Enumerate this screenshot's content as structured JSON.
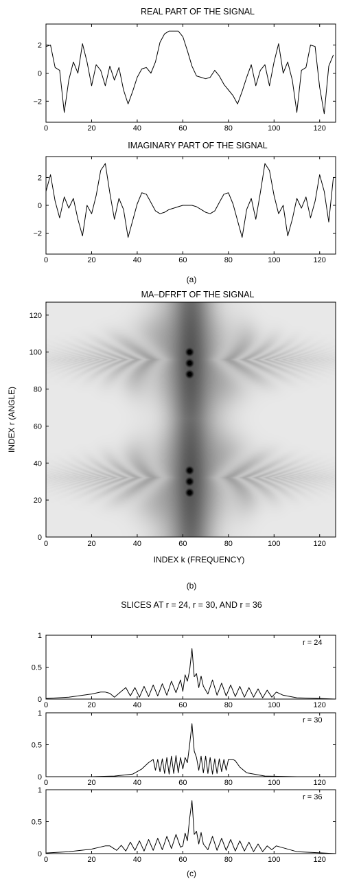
{
  "panels": {
    "a": {
      "label": "(a)"
    },
    "b": {
      "label": "(b)"
    },
    "c": {
      "label": "(c)",
      "title": "SLICES AT r = 24, r = 30, AND r = 36"
    }
  },
  "chart_data": [
    {
      "id": "real",
      "type": "line",
      "title": "REAL PART OF THE SIGNAL",
      "xlabel": "",
      "ylabel": "",
      "xlim": [
        0,
        127
      ],
      "ylim": [
        -3.5,
        3.5
      ],
      "xticks": [
        0,
        20,
        40,
        60,
        80,
        100,
        120
      ],
      "yticks": [
        -2,
        0,
        2
      ],
      "grid": false,
      "x": [
        0,
        2,
        4,
        6,
        8,
        10,
        12,
        14,
        16,
        18,
        20,
        22,
        24,
        26,
        28,
        30,
        32,
        34,
        36,
        38,
        40,
        42,
        44,
        46,
        48,
        50,
        52,
        54,
        56,
        58,
        60,
        62,
        64,
        66,
        68,
        70,
        72,
        74,
        76,
        78,
        80,
        82,
        84,
        86,
        88,
        90,
        92,
        94,
        96,
        98,
        100,
        102,
        104,
        106,
        108,
        110,
        112,
        114,
        116,
        118,
        120,
        122,
        124,
        126
      ],
      "y": [
        1.9,
        2.0,
        0.4,
        0.2,
        -2.8,
        -0.5,
        0.8,
        0.0,
        2.1,
        0.8,
        -0.9,
        0.6,
        0.2,
        -0.9,
        0.5,
        -0.5,
        0.4,
        -1.2,
        -2.2,
        -1.3,
        -0.3,
        0.3,
        0.4,
        0.0,
        0.8,
        2.2,
        2.8,
        3.0,
        3.0,
        3.0,
        2.6,
        1.6,
        0.5,
        -0.2,
        -0.3,
        -0.4,
        -0.3,
        0.2,
        -0.2,
        -0.8,
        -1.2,
        -1.6,
        -2.2,
        -1.3,
        -0.3,
        0.6,
        -0.9,
        0.2,
        0.6,
        -0.9,
        0.8,
        2.1,
        0.0,
        0.8,
        -0.5,
        -2.8,
        0.2,
        0.4,
        2.0,
        1.9,
        -1.0,
        -2.9,
        0.5,
        1.3
      ]
    },
    {
      "id": "imag",
      "type": "line",
      "title": "IMAGINARY PART OF THE SIGNAL",
      "xlabel": "",
      "ylabel": "",
      "xlim": [
        0,
        127
      ],
      "ylim": [
        -3.5,
        3.5
      ],
      "xticks": [
        0,
        20,
        40,
        60,
        80,
        100,
        120
      ],
      "yticks": [
        -2,
        0,
        2
      ],
      "grid": false,
      "x": [
        0,
        2,
        4,
        6,
        8,
        10,
        12,
        14,
        16,
        18,
        20,
        22,
        24,
        26,
        28,
        30,
        32,
        34,
        36,
        38,
        40,
        42,
        44,
        46,
        48,
        50,
        52,
        54,
        56,
        58,
        60,
        62,
        64,
        66,
        68,
        70,
        72,
        74,
        76,
        78,
        80,
        82,
        84,
        86,
        88,
        90,
        92,
        94,
        96,
        98,
        100,
        102,
        104,
        106,
        108,
        110,
        112,
        114,
        116,
        118,
        120,
        122,
        124,
        126
      ],
      "y": [
        1.0,
        2.2,
        0.3,
        -0.9,
        0.6,
        -0.2,
        0.5,
        -1.0,
        -2.2,
        0.0,
        -0.6,
        0.7,
        2.5,
        3.0,
        0.9,
        -1.0,
        0.5,
        -0.3,
        -2.3,
        -1.1,
        0.1,
        0.9,
        0.8,
        0.2,
        -0.4,
        -0.6,
        -0.5,
        -0.3,
        -0.2,
        -0.1,
        0.0,
        0.0,
        0.0,
        -0.1,
        -0.3,
        -0.5,
        -0.6,
        -0.4,
        0.2,
        0.8,
        0.9,
        0.1,
        -1.1,
        -2.3,
        -0.3,
        0.5,
        -1.0,
        0.9,
        3.0,
        2.5,
        0.7,
        -0.6,
        0.0,
        -2.2,
        -1.0,
        0.5,
        -0.2,
        0.6,
        -0.9,
        0.3,
        2.2,
        1.0,
        -1.2,
        2.0
      ]
    },
    {
      "id": "madfrft",
      "type": "heatmap",
      "title": "MA–DFRFT OF THE SIGNAL",
      "xlabel": "INDEX k (FREQUENCY)",
      "ylabel": "INDEX r (ANGLE)",
      "xlim": [
        0,
        127
      ],
      "ylim": [
        0,
        127
      ],
      "xticks": [
        0,
        20,
        40,
        60,
        80,
        100,
        120
      ],
      "yticks": [
        0,
        20,
        40,
        60,
        80,
        100,
        120
      ],
      "colormap": "gray-inverted",
      "peaks": [
        {
          "k": 63,
          "r": 24
        },
        {
          "k": 63,
          "r": 30
        },
        {
          "k": 63,
          "r": 36
        },
        {
          "k": 63,
          "r": 88
        },
        {
          "k": 63,
          "r": 94
        },
        {
          "k": 63,
          "r": 100
        }
      ]
    },
    {
      "id": "slice24",
      "type": "line",
      "annotation": "r = 24",
      "xlim": [
        0,
        127
      ],
      "ylim": [
        0,
        1
      ],
      "xticks": [
        0,
        20,
        40,
        60,
        80,
        100,
        120
      ],
      "yticks": [
        0,
        0.5,
        1
      ],
      "x": [
        0,
        10,
        20,
        24,
        26,
        28,
        30,
        33,
        35,
        37,
        39,
        41,
        43,
        45,
        47,
        49,
        51,
        53,
        55,
        57,
        59,
        60,
        61,
        62,
        63,
        64,
        65,
        66,
        67,
        68,
        69,
        71,
        73,
        75,
        77,
        79,
        81,
        83,
        85,
        87,
        89,
        91,
        93,
        95,
        97,
        99,
        101,
        104,
        110,
        120,
        127
      ],
      "y": [
        0.01,
        0.03,
        0.08,
        0.11,
        0.11,
        0.09,
        0.03,
        0.12,
        0.18,
        0.05,
        0.18,
        0.03,
        0.2,
        0.04,
        0.22,
        0.05,
        0.24,
        0.06,
        0.28,
        0.1,
        0.3,
        0.12,
        0.38,
        0.28,
        0.45,
        0.79,
        0.35,
        0.4,
        0.18,
        0.36,
        0.2,
        0.08,
        0.3,
        0.06,
        0.25,
        0.05,
        0.22,
        0.04,
        0.2,
        0.03,
        0.18,
        0.03,
        0.16,
        0.02,
        0.14,
        0.03,
        0.11,
        0.06,
        0.02,
        0.01,
        0.0
      ]
    },
    {
      "id": "slice30",
      "type": "line",
      "annotation": "r = 30",
      "xlim": [
        0,
        127
      ],
      "ylim": [
        0,
        1
      ],
      "xticks": [
        0,
        20,
        40,
        60,
        80,
        100,
        120
      ],
      "yticks": [
        0,
        0.5,
        1
      ],
      "x": [
        0,
        20,
        30,
        38,
        42,
        45,
        47,
        48,
        49,
        50,
        51,
        52,
        53,
        54,
        55,
        56,
        57,
        58,
        59,
        60,
        61,
        62,
        63,
        64,
        65,
        66,
        67,
        68,
        69,
        70,
        71,
        72,
        73,
        74,
        75,
        76,
        77,
        78,
        79,
        80,
        81,
        82,
        83,
        85,
        88,
        96,
        110,
        127
      ],
      "y": [
        0.0,
        0.0,
        0.01,
        0.04,
        0.12,
        0.22,
        0.27,
        0.1,
        0.27,
        0.08,
        0.28,
        0.05,
        0.3,
        0.04,
        0.32,
        0.05,
        0.33,
        0.06,
        0.3,
        0.12,
        0.3,
        0.22,
        0.5,
        0.83,
        0.4,
        0.3,
        0.1,
        0.32,
        0.06,
        0.32,
        0.05,
        0.3,
        0.04,
        0.28,
        0.05,
        0.28,
        0.08,
        0.27,
        0.1,
        0.27,
        0.27,
        0.27,
        0.25,
        0.15,
        0.06,
        0.01,
        0.0,
        0.0
      ]
    },
    {
      "id": "slice36",
      "type": "line",
      "annotation": "r = 36",
      "xlim": [
        0,
        127
      ],
      "ylim": [
        0,
        1
      ],
      "xticks": [
        0,
        20,
        40,
        60,
        80,
        100,
        120
      ],
      "yticks": [
        0,
        0.5,
        1
      ],
      "x": [
        0,
        10,
        20,
        26,
        28,
        31,
        33,
        35,
        37,
        39,
        41,
        43,
        45,
        47,
        49,
        51,
        53,
        55,
        57,
        59,
        60,
        61,
        62,
        63,
        64,
        65,
        66,
        67,
        68,
        69,
        71,
        73,
        75,
        77,
        79,
        81,
        83,
        85,
        87,
        89,
        91,
        93,
        95,
        97,
        99,
        101,
        103,
        110,
        127
      ],
      "y": [
        0.01,
        0.03,
        0.07,
        0.12,
        0.12,
        0.05,
        0.13,
        0.04,
        0.18,
        0.05,
        0.2,
        0.04,
        0.22,
        0.05,
        0.24,
        0.06,
        0.27,
        0.08,
        0.3,
        0.1,
        0.12,
        0.32,
        0.2,
        0.55,
        0.83,
        0.3,
        0.35,
        0.15,
        0.33,
        0.15,
        0.06,
        0.27,
        0.05,
        0.24,
        0.05,
        0.22,
        0.04,
        0.2,
        0.04,
        0.18,
        0.03,
        0.15,
        0.03,
        0.12,
        0.06,
        0.12,
        0.1,
        0.03,
        0.0
      ]
    }
  ]
}
